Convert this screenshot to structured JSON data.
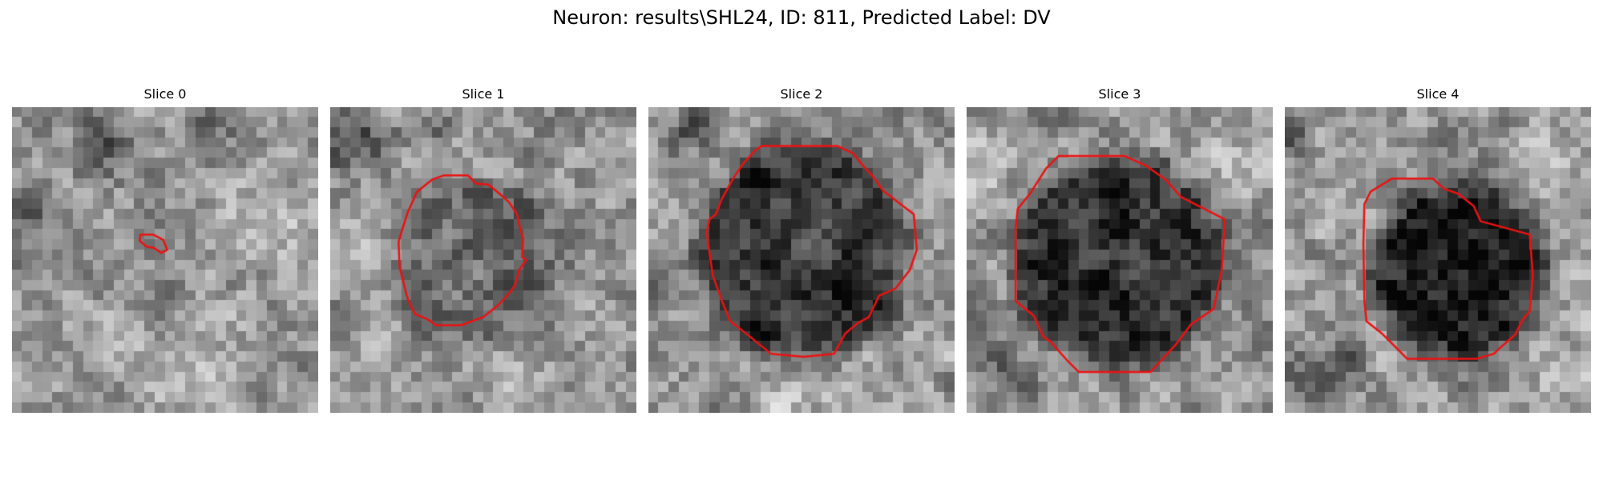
{
  "figure": {
    "title": "Neuron: results\\SHL24, ID: 811, Predicted Label: DV"
  },
  "panels": [
    {
      "title": "Slice 0"
    },
    {
      "title": "Slice 1"
    },
    {
      "title": "Slice 2"
    },
    {
      "title": "Slice 3"
    },
    {
      "title": "Slice 4"
    }
  ],
  "colors": {
    "contour": "#ee1111",
    "background": "#ffffff"
  }
}
